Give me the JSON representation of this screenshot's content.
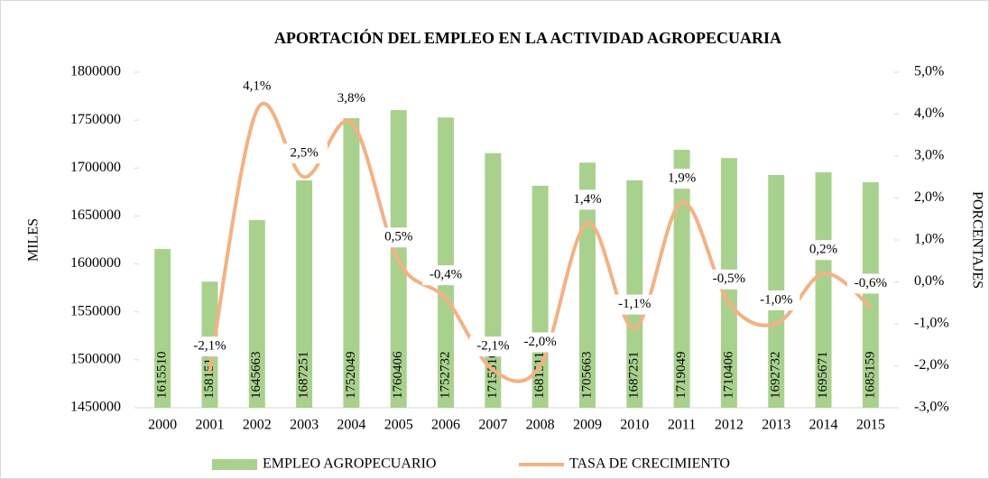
{
  "chart_data": {
    "type": "bar-line",
    "title": "APORTACIÓN DEL EMPLEO EN LA ACTIVIDAD AGROPECUARIA",
    "ylabel": "MILES",
    "y2label": "PORCENTAJES",
    "categories": [
      "2000",
      "2001",
      "2002",
      "2003",
      "2004",
      "2005",
      "2006",
      "2007",
      "2008",
      "2009",
      "2010",
      "2011",
      "2012",
      "2013",
      "2014",
      "2015"
    ],
    "series": [
      {
        "name": "EMPLEO AGROPECUARIO",
        "type": "bar",
        "color": "#a9d18e",
        "values": [
          1615510,
          1581511,
          1645663,
          1687251,
          1752049,
          1760406,
          1752732,
          1715510,
          1681511,
          1705663,
          1687251,
          1719049,
          1710406,
          1692732,
          1695671,
          1685159
        ]
      },
      {
        "name": "TASA DE CRECIMIENTO",
        "type": "line",
        "axis": "y2",
        "color": "#f4b183",
        "values": [
          null,
          -2.1,
          4.1,
          2.5,
          3.8,
          0.5,
          -0.4,
          -2.1,
          -2.0,
          1.4,
          -1.1,
          1.9,
          -0.5,
          -1.0,
          0.2,
          -0.6
        ],
        "value_labels": [
          null,
          "-2,1%",
          "4,1%",
          "2,5%",
          "3,8%",
          "0,5%",
          "-0,4%",
          "-2,1%",
          "-2,0%",
          "1,4%",
          "-1,1%",
          "1,9%",
          "-0,5%",
          "-1,0%",
          "0,2%",
          "-0,6%"
        ]
      }
    ],
    "ylim": [
      1450000,
      1800000
    ],
    "yticks": [
      1450000,
      1500000,
      1550000,
      1600000,
      1650000,
      1700000,
      1750000,
      1800000
    ],
    "y2lim": [
      -3,
      5
    ],
    "y2ticks": [
      {
        "value": -3,
        "label": "-3,0%"
      },
      {
        "value": -2,
        "label": "-2,0%"
      },
      {
        "value": -1,
        "label": "-1,0%"
      },
      {
        "value": 0,
        "label": "0,0%"
      },
      {
        "value": 1,
        "label": "1,0%"
      },
      {
        "value": 2,
        "label": "2,0%"
      },
      {
        "value": 3,
        "label": "3,0%"
      },
      {
        "value": 4,
        "label": "4,0%"
      },
      {
        "value": 5,
        "label": "5,0%"
      }
    ],
    "legend": "bottom"
  }
}
